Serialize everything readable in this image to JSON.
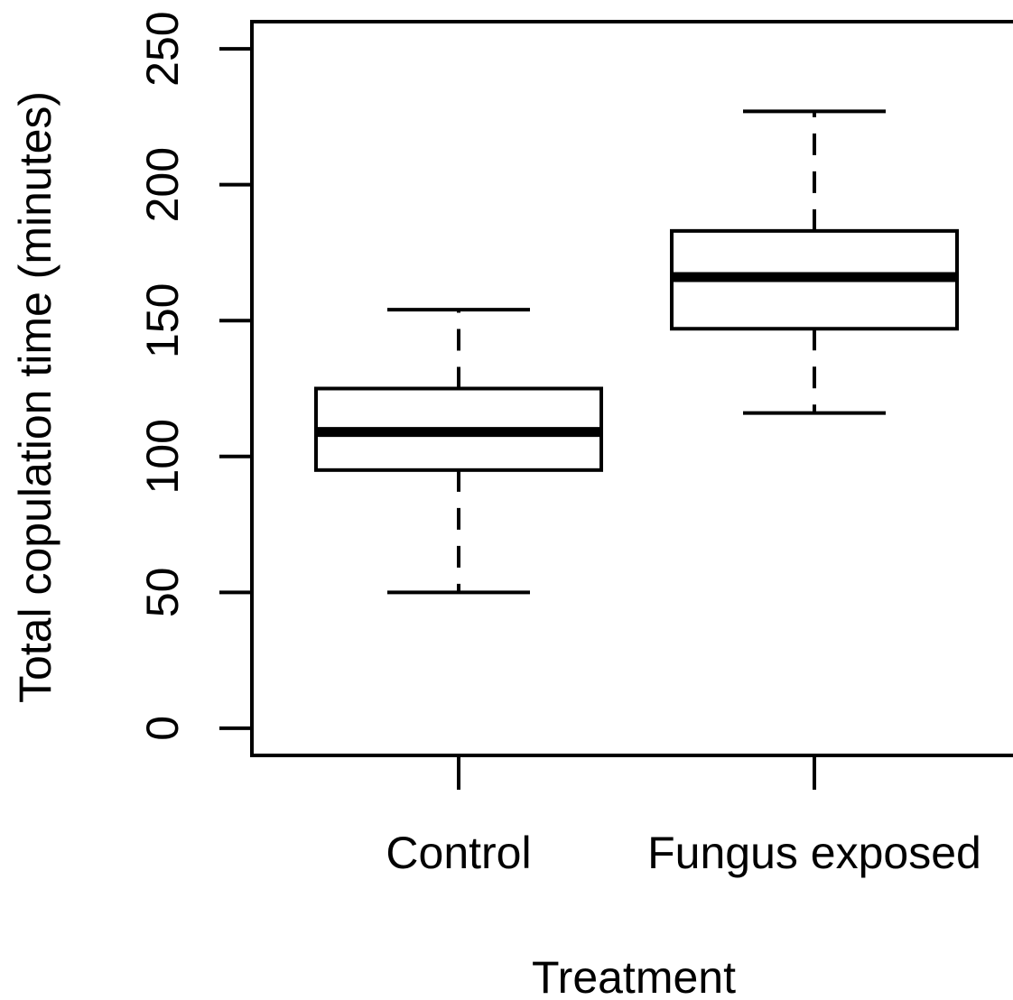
{
  "chart_data": {
    "type": "boxplot",
    "title": "",
    "xlabel": "Treatment",
    "ylabel": "Total copulation time (minutes)",
    "ylim": [
      -10,
      260
    ],
    "yticks": [
      0,
      50,
      100,
      150,
      200,
      250
    ],
    "grid": false,
    "legend": "none",
    "categories": [
      "Control",
      "Fungus exposed"
    ],
    "boxes": [
      {
        "category": "Control",
        "whisker_low": 50,
        "q1": 95,
        "median": 109,
        "q3": 125,
        "whisker_high": 154
      },
      {
        "category": "Fungus exposed",
        "whisker_low": 116,
        "q1": 147,
        "median": 166,
        "q3": 183,
        "whisker_high": 227
      }
    ]
  }
}
